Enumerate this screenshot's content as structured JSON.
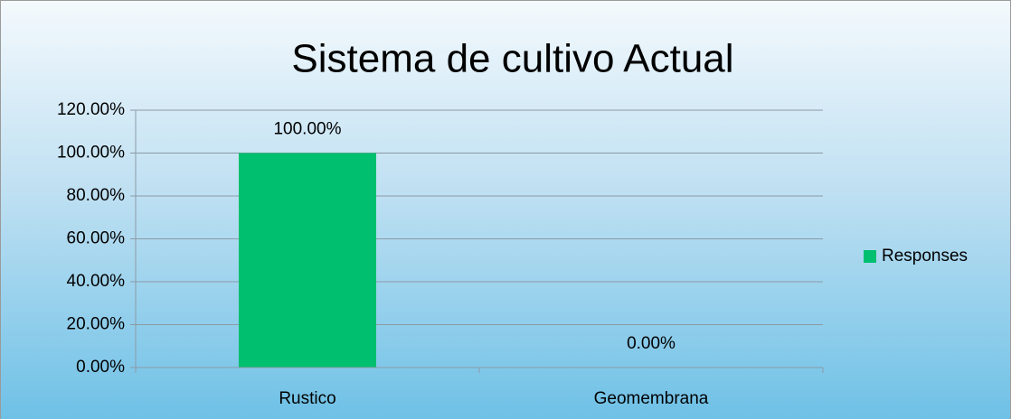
{
  "chart_data": {
    "type": "bar",
    "title": "Sistema de cultivo Actual",
    "categories": [
      "Rustico",
      "Geomembrana"
    ],
    "series": [
      {
        "name": "Responses",
        "color": "#00bf6f",
        "values": [
          100,
          0
        ],
        "value_labels": [
          "100.00%",
          "0.00%"
        ]
      }
    ],
    "ylim": [
      0,
      120
    ],
    "yticks": [
      {
        "value": 0,
        "label": "0.00%"
      },
      {
        "value": 20,
        "label": "20.00%"
      },
      {
        "value": 40,
        "label": "40.00%"
      },
      {
        "value": 60,
        "label": "60.00%"
      },
      {
        "value": 80,
        "label": "80.00%"
      },
      {
        "value": 100,
        "label": "100.00%"
      },
      {
        "value": 120,
        "label": "120.00%"
      }
    ],
    "grid": true,
    "legend": "right"
  }
}
